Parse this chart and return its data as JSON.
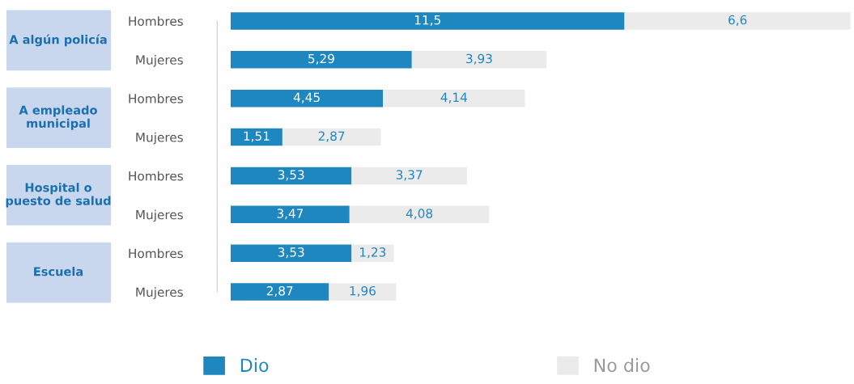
{
  "chart_data": {
    "type": "bar",
    "orientation": "horizontal",
    "stacked": true,
    "categories": [
      "Hombres",
      "Mujeres",
      "Hombres",
      "Mujeres",
      "Hombres",
      "Mujeres",
      "Hombres",
      "Mujeres"
    ],
    "series": [
      {
        "name": "Dio",
        "color": "#1f87c0",
        "values": [
          11.5,
          5.29,
          4.45,
          1.51,
          3.53,
          3.47,
          3.53,
          2.87
        ],
        "value_labels": [
          "11,5",
          "5,29",
          "4,45",
          "1,51",
          "3,53",
          "3,47",
          "3,53",
          "2,87"
        ]
      },
      {
        "name": "No dio",
        "color": "#ebebeb",
        "values": [
          6.6,
          3.93,
          4.14,
          2.87,
          3.37,
          4.08,
          1.23,
          1.96
        ],
        "value_labels": [
          "6,6",
          "3,93",
          "4,14",
          "2,87",
          "3,37",
          "4,08",
          "1,23",
          "1,96"
        ]
      }
    ],
    "annotations": [
      "A algún policía",
      "A empleado municipal",
      "Hospital o puesto de salud",
      "Escuela"
    ],
    "legend": "bottom",
    "grid": false
  }
}
